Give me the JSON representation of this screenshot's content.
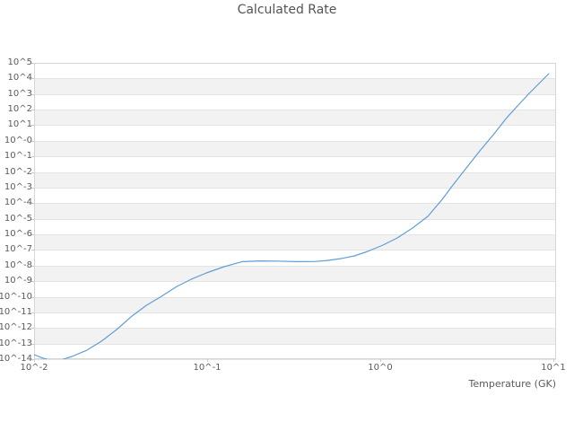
{
  "title": "Calculated Rate",
  "colors": {
    "background": "#ffffff",
    "title_text": "#545454",
    "tick_text": "#5a5a5a",
    "band_fill": "#f2f2f2",
    "gridline": "#e4e4e4",
    "plot_border": "#d6d6d6",
    "tick_mark": "#c9c9c9",
    "line": "#5f9ed6"
  },
  "x_axis": {
    "title": "Temperature (GK)",
    "scale": "log10",
    "tick_labels": [
      "10^-2",
      "10^-1",
      "10^0",
      "10^1"
    ],
    "tick_exponents": [
      -2,
      -1,
      0,
      1
    ]
  },
  "y_axis": {
    "title": "",
    "scale": "log10",
    "tick_labels": [
      "10^5",
      "10^4",
      "10^3",
      "10^2",
      "10^1",
      "10^-0",
      "10^-1",
      "10^-2",
      "10^-3",
      "10^-4",
      "10^-5",
      "10^-6",
      "10^-7",
      "10^-8",
      "10^-9",
      "10^-10",
      "10^-11",
      "10^-12",
      "10^-13",
      "10^-14"
    ],
    "tick_exponents": [
      5,
      4,
      3,
      2,
      1,
      0,
      -1,
      -2,
      -3,
      -4,
      -5,
      -6,
      -7,
      -8,
      -9,
      -10,
      -11,
      -12,
      -13,
      -14
    ]
  },
  "chart_data": {
    "type": "line",
    "title": "Calculated Rate",
    "xlabel": "Temperature (GK)",
    "ylabel": "",
    "x_scale": "log10",
    "y_scale": "log10",
    "x_log_range": [
      -2,
      1.0155
    ],
    "y_log_range": [
      -14,
      5
    ],
    "grid": "horizontal gridlines at each decade; alternating white/gray decade bands; no vertical gridlines",
    "legend": "none",
    "series": [
      {
        "name": "calculated-rate",
        "color": "#5f9ed6",
        "points_log10": [
          [
            -2.0,
            -13.71
          ],
          [
            -1.95,
            -13.93
          ],
          [
            -1.91,
            -14.06
          ],
          [
            -1.86,
            -14.1
          ],
          [
            -1.834,
            -14.02
          ],
          [
            -1.782,
            -13.83
          ],
          [
            -1.694,
            -13.42
          ],
          [
            -1.611,
            -12.85
          ],
          [
            -1.523,
            -12.1
          ],
          [
            -1.435,
            -11.24
          ],
          [
            -1.352,
            -10.55
          ],
          [
            -1.264,
            -9.97
          ],
          [
            -1.176,
            -9.34
          ],
          [
            -1.093,
            -8.88
          ],
          [
            -1.005,
            -8.47
          ],
          [
            -0.902,
            -8.07
          ],
          [
            -0.798,
            -7.75
          ],
          [
            -0.694,
            -7.7
          ],
          [
            -0.591,
            -7.71
          ],
          [
            -0.487,
            -7.75
          ],
          [
            -0.383,
            -7.74
          ],
          [
            -0.306,
            -7.67
          ],
          [
            -0.228,
            -7.55
          ],
          [
            -0.15,
            -7.38
          ],
          [
            -0.073,
            -7.09
          ],
          [
            0.015,
            -6.69
          ],
          [
            0.098,
            -6.23
          ],
          [
            0.187,
            -5.59
          ],
          [
            0.275,
            -4.84
          ],
          [
            0.358,
            -3.75
          ],
          [
            0.42,
            -2.83
          ],
          [
            0.497,
            -1.74
          ],
          [
            0.575,
            -0.64
          ],
          [
            0.653,
            0.39
          ],
          [
            0.731,
            1.49
          ],
          [
            0.793,
            2.24
          ],
          [
            0.86,
            3.04
          ],
          [
            0.912,
            3.62
          ],
          [
            0.974,
            4.31
          ]
        ]
      }
    ]
  }
}
